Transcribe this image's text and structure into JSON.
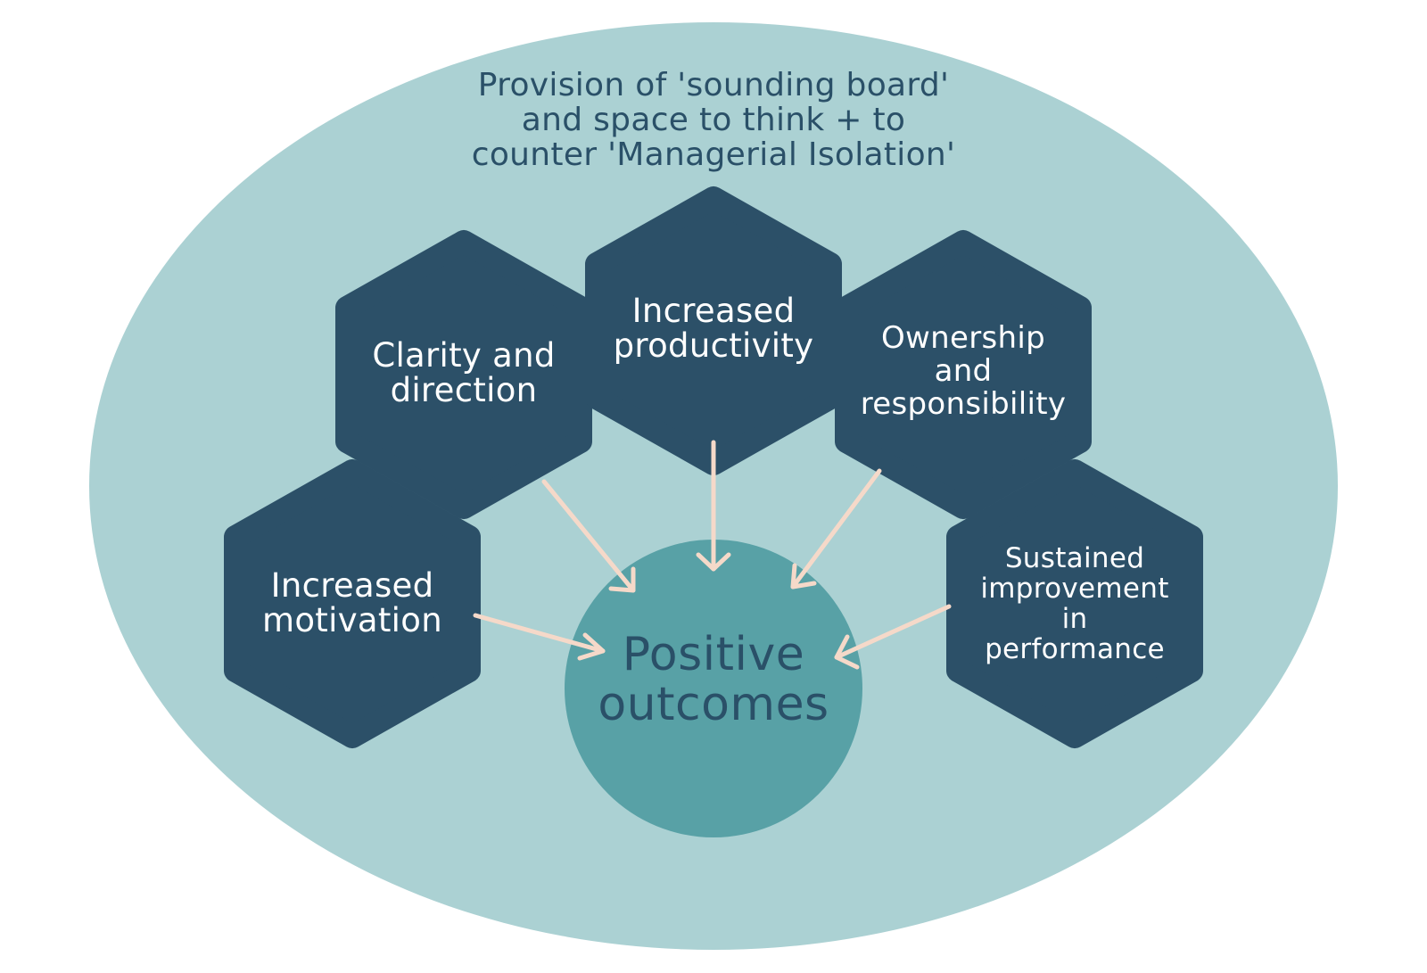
{
  "frame": {
    "title_lines": [
      "Provision of 'sounding board'",
      "and space to think + to",
      "counter 'Managerial Isolation'"
    ]
  },
  "nodes": {
    "clarity": {
      "lines": [
        "Clarity and",
        "direction"
      ]
    },
    "productivity": {
      "lines": [
        "Increased",
        "productivity"
      ]
    },
    "ownership": {
      "lines": [
        "Ownership",
        "and",
        "responsibility"
      ]
    },
    "motivation": {
      "lines": [
        "Increased",
        "motivation"
      ]
    },
    "performance": {
      "lines": [
        "Sustained",
        "improvement",
        "in",
        "performance"
      ]
    }
  },
  "center": {
    "lines": [
      "Positive",
      "outcomes"
    ]
  },
  "colors": {
    "outer_ellipse": "#abd1d3",
    "hexagon": "#2c5068",
    "center_circle": "#58a1a6",
    "arrow": "#f5d9c9",
    "frame_text": "#2a5068",
    "center_text": "#2a5068",
    "hex_text": "#ffffff"
  }
}
